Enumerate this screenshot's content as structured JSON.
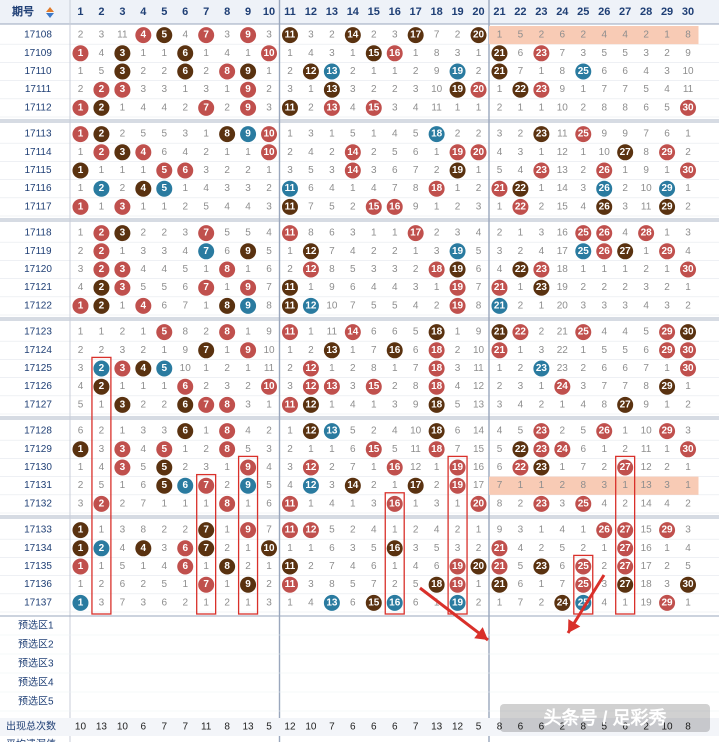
{
  "header": {
    "period_label": "期号",
    "sort_icon": "sort-arrow-icon"
  },
  "row_labels": {
    "preselect": [
      "预选区1",
      "预选区2",
      "预选区3",
      "预选区4",
      "预选区5"
    ],
    "total": "出现总次数",
    "avg": "平均遗漏值"
  },
  "colors": {
    "red": "#c0504d",
    "brown": "#5a3210",
    "blue": "#2a7ba0",
    "highlight": "#f8cbb5",
    "highlight_text": "#c0504d",
    "header_text": "#1f3f75",
    "red_box": "#d9302a"
  },
  "chart_data": {
    "type": "table",
    "columns": [
      1,
      2,
      3,
      4,
      5,
      6,
      7,
      8,
      9,
      10,
      11,
      12,
      13,
      14,
      15,
      16,
      17,
      18,
      19,
      20,
      21,
      22,
      23,
      24,
      25,
      26,
      27,
      28,
      29,
      30
    ],
    "periods": [
      "17108",
      "17109",
      "17110",
      "17111",
      "17112",
      "17113",
      "17114",
      "17115",
      "17116",
      "17117",
      "17118",
      "17119",
      "17120",
      "17121",
      "17122",
      "17123",
      "17124",
      "17125",
      "17126",
      "17127",
      "17128",
      "17129",
      "17130",
      "17131",
      "17132",
      "17133",
      "17134",
      "17135",
      "17136",
      "17137"
    ],
    "hits": [
      [
        4,
        5,
        7,
        9,
        11,
        14,
        17,
        20
      ],
      [
        1,
        3,
        6,
        10,
        15,
        16,
        21,
        23
      ],
      [
        3,
        6,
        8,
        9,
        12,
        13,
        19,
        21,
        25
      ],
      [
        2,
        3,
        9,
        13,
        19,
        20,
        22,
        23
      ],
      [
        1,
        2,
        7,
        9,
        11,
        13,
        15,
        30
      ],
      [
        1,
        2,
        8,
        9,
        10,
        18,
        23,
        25
      ],
      [
        2,
        3,
        4,
        10,
        14,
        19,
        20,
        27,
        29
      ],
      [
        1,
        5,
        6,
        14,
        19,
        23,
        26,
        30
      ],
      [
        2,
        4,
        5,
        11,
        18,
        21,
        22,
        26,
        29
      ],
      [
        1,
        3,
        11,
        15,
        16,
        22,
        26,
        29
      ],
      [
        2,
        3,
        7,
        11,
        17,
        25,
        26,
        28
      ],
      [
        2,
        7,
        9,
        12,
        19,
        25,
        26,
        27,
        29
      ],
      [
        2,
        3,
        8,
        12,
        18,
        19,
        22,
        23,
        30
      ],
      [
        2,
        3,
        7,
        9,
        11,
        19,
        21,
        23
      ],
      [
        1,
        2,
        4,
        8,
        9,
        11,
        12,
        19,
        21
      ],
      [
        5,
        8,
        11,
        14,
        18,
        21,
        22,
        25,
        29,
        30
      ],
      [
        7,
        9,
        13,
        16,
        18,
        21,
        29,
        30
      ],
      [
        2,
        3,
        4,
        5,
        12,
        18,
        23,
        30
      ],
      [
        2,
        6,
        10,
        12,
        13,
        15,
        18,
        24,
        29
      ],
      [
        3,
        6,
        7,
        8,
        11,
        12,
        18,
        27
      ],
      [
        6,
        8,
        12,
        13,
        18,
        23,
        26,
        29
      ],
      [
        1,
        3,
        5,
        8,
        15,
        18,
        22,
        23,
        24,
        30
      ],
      [
        3,
        5,
        9,
        12,
        16,
        19,
        22,
        23,
        27
      ],
      [
        5,
        6,
        7,
        9,
        12,
        14,
        17,
        19
      ],
      [
        2,
        8,
        11,
        16,
        20,
        23,
        25
      ],
      [
        1,
        7,
        9,
        11,
        12,
        26,
        27,
        29
      ],
      [
        1,
        2,
        4,
        6,
        7,
        10,
        16,
        21,
        27
      ],
      [
        1,
        6,
        8,
        11,
        19,
        20,
        21,
        23,
        25,
        27
      ],
      [
        7,
        9,
        11,
        18,
        19,
        21,
        25,
        27,
        30
      ],
      [
        1,
        13,
        15,
        16,
        19,
        24,
        25,
        29
      ]
    ],
    "first_row_highlight": [
      1,
      5,
      2,
      6,
      2,
      4,
      4,
      2,
      1,
      8
    ],
    "highlight_row_17131": [
      7,
      1,
      1,
      2,
      8,
      3,
      1,
      13,
      3,
      1
    ],
    "total_counts": [
      10,
      13,
      10,
      6,
      7,
      7,
      11,
      8,
      13,
      5,
      12,
      10,
      7,
      6,
      6,
      6,
      7,
      13,
      12,
      5,
      8,
      6,
      6,
      2,
      8,
      5,
      6,
      2,
      10,
      8
    ],
    "watermark": "头条号 / 足彩秀"
  }
}
